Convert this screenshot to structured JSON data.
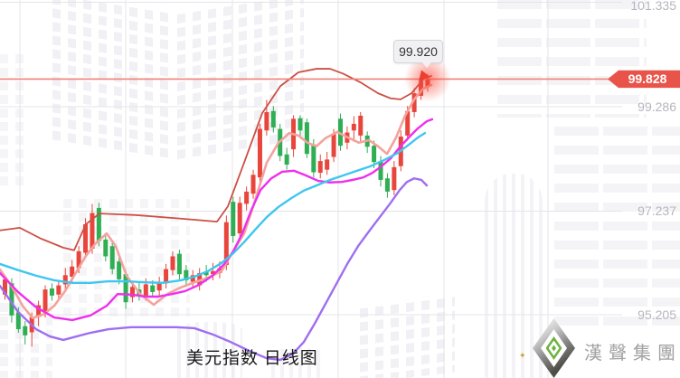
{
  "title": {
    "text": "美元指数 日线图"
  },
  "tooltip": {
    "value": "99.920"
  },
  "price_badge": {
    "value": "99.828",
    "color": "#e8544a"
  },
  "logo": {
    "text": "漢聲集團"
  },
  "y_axis": {
    "labels": [
      "101.335",
      "99.286",
      "97.237",
      "95.205"
    ]
  },
  "chart_data": {
    "type": "candlestick",
    "title": "美元指数 日线图",
    "instrument": "美元指数",
    "timeframe": "日线图",
    "current_price": 99.828,
    "marked_high": 99.92,
    "up_color": "#e8463c",
    "down_color": "#2fae54",
    "price_line_color": "#ef8276",
    "grid": {
      "vertical_x": [
        22,
        139,
        257,
        374,
        491,
        606
      ],
      "horizontal_prices": [
        101.335,
        99.286,
        97.237,
        95.205
      ],
      "color": "#e4e4ea"
    },
    "ylim": [
      94.2,
      101.4
    ],
    "candles_ohlc": [
      [
        95.6,
        95.98,
        95.5,
        95.9
      ],
      [
        95.82,
        95.92,
        95.05,
        95.19
      ],
      [
        95.25,
        95.35,
        94.85,
        94.92
      ],
      [
        94.98,
        95.08,
        94.62,
        94.8
      ],
      [
        94.86,
        95.25,
        94.58,
        95.16
      ],
      [
        95.16,
        95.48,
        94.98,
        95.39
      ],
      [
        95.25,
        95.78,
        95.15,
        95.7
      ],
      [
        95.72,
        95.82,
        95.48,
        95.58
      ],
      [
        95.6,
        95.88,
        95.5,
        95.78
      ],
      [
        95.8,
        96.12,
        95.7,
        95.98
      ],
      [
        95.95,
        96.28,
        95.85,
        96.15
      ],
      [
        96.12,
        96.55,
        96.02,
        96.45
      ],
      [
        96.42,
        97.1,
        96.32,
        96.98
      ],
      [
        96.5,
        97.38,
        96.4,
        97.2
      ],
      [
        97.3,
        97.4,
        96.55,
        96.65
      ],
      [
        96.68,
        96.8,
        96.25,
        96.35
      ],
      [
        96.55,
        96.65,
        96.0,
        96.1
      ],
      [
        96.25,
        96.35,
        95.8,
        95.9
      ],
      [
        96.0,
        96.08,
        95.32,
        95.45
      ],
      [
        95.55,
        95.85,
        95.45,
        95.75
      ],
      [
        95.7,
        95.85,
        95.48,
        95.6
      ],
      [
        95.58,
        95.92,
        95.48,
        95.8
      ],
      [
        95.78,
        95.88,
        95.55,
        95.65
      ],
      [
        95.68,
        95.95,
        95.58,
        95.85
      ],
      [
        95.82,
        96.2,
        95.72,
        96.1
      ],
      [
        96.08,
        96.45,
        95.98,
        96.35
      ],
      [
        96.4,
        96.48,
        95.9,
        96.0
      ],
      [
        96.08,
        96.18,
        95.78,
        95.88
      ],
      [
        95.85,
        96.08,
        95.75,
        95.98
      ],
      [
        95.78,
        96.12,
        95.68,
        96.02
      ],
      [
        96.05,
        96.18,
        95.85,
        95.98
      ],
      [
        96.0,
        96.22,
        95.88,
        96.06
      ],
      [
        96.02,
        96.25,
        95.92,
        96.12
      ],
      [
        96.18,
        97.15,
        96.08,
        97.02
      ],
      [
        97.42,
        97.52,
        96.62,
        96.75
      ],
      [
        96.8,
        97.52,
        96.7,
        97.4
      ],
      [
        97.38,
        97.72,
        97.25,
        97.62
      ],
      [
        97.58,
        98.05,
        97.48,
        97.95
      ],
      [
        97.9,
        98.95,
        97.8,
        98.85
      ],
      [
        98.82,
        99.42,
        98.72,
        99.18
      ],
      [
        99.2,
        99.3,
        98.78,
        98.88
      ],
      [
        98.85,
        98.95,
        98.22,
        98.32
      ],
      [
        98.35,
        98.48,
        98.05,
        98.15
      ],
      [
        98.45,
        99.12,
        98.3,
        99.05
      ],
      [
        99.06,
        99.12,
        98.72,
        98.82
      ],
      [
        98.98,
        99.05,
        98.28,
        98.36
      ],
      [
        98.55,
        98.65,
        97.9,
        98.0
      ],
      [
        97.99,
        98.35,
        97.88,
        98.22
      ],
      [
        98.05,
        98.4,
        97.95,
        98.25
      ],
      [
        98.3,
        98.85,
        98.2,
        98.75
      ],
      [
        99.05,
        99.15,
        98.42,
        98.52
      ],
      [
        98.58,
        98.9,
        98.45,
        98.78
      ],
      [
        98.82,
        99.1,
        98.6,
        98.95
      ],
      [
        98.72,
        99.18,
        98.6,
        99.11
      ],
      [
        98.72,
        98.8,
        98.38,
        98.5
      ],
      [
        98.52,
        98.62,
        98.08,
        98.2
      ],
      [
        98.22,
        98.32,
        97.72,
        97.85
      ],
      [
        97.88,
        97.98,
        97.5,
        97.62
      ],
      [
        97.65,
        98.22,
        97.55,
        98.1
      ],
      [
        98.12,
        98.82,
        98.02,
        98.7
      ],
      [
        98.72,
        99.3,
        98.62,
        99.2
      ],
      [
        99.18,
        99.65,
        99.08,
        99.55
      ],
      [
        99.5,
        99.86,
        99.42,
        99.78
      ],
      [
        99.68,
        99.92,
        99.58,
        99.828
      ]
    ],
    "overlays": [
      {
        "name": "upper-band",
        "color": "#cc5045",
        "width": 1.8,
        "points": [
          [
            0,
            96.86
          ],
          [
            22,
            96.91
          ],
          [
            45,
            96.7
          ],
          [
            70,
            96.52
          ],
          [
            82,
            96.47
          ],
          [
            95,
            96.98
          ],
          [
            110,
            97.19
          ],
          [
            150,
            97.16
          ],
          [
            200,
            97.09
          ],
          [
            240,
            97.03
          ],
          [
            252,
            97.33
          ],
          [
            270,
            98.19
          ],
          [
            290,
            99.16
          ],
          [
            310,
            99.69
          ],
          [
            330,
            99.96
          ],
          [
            350,
            100.03
          ],
          [
            365,
            100.03
          ],
          [
            380,
            99.93
          ],
          [
            400,
            99.75
          ],
          [
            418,
            99.55
          ],
          [
            432,
            99.45
          ],
          [
            443,
            99.43
          ],
          [
            455,
            99.55
          ],
          [
            468,
            99.82
          ],
          [
            477,
            99.89
          ]
        ]
      },
      {
        "name": "ma-fast",
        "color": "#f4a29c",
        "width": 2.6,
        "points": [
          [
            0,
            96.09
          ],
          [
            12,
            95.79
          ],
          [
            25,
            95.38
          ],
          [
            36,
            95.14
          ],
          [
            48,
            95.21
          ],
          [
            60,
            95.38
          ],
          [
            72,
            95.67
          ],
          [
            85,
            96.06
          ],
          [
            95,
            96.36
          ],
          [
            105,
            96.59
          ],
          [
            118,
            96.8
          ],
          [
            128,
            96.55
          ],
          [
            140,
            95.97
          ],
          [
            155,
            95.61
          ],
          [
            170,
            95.4
          ],
          [
            185,
            95.61
          ],
          [
            200,
            95.74
          ],
          [
            215,
            95.84
          ],
          [
            230,
            95.93
          ],
          [
            245,
            96.06
          ],
          [
            258,
            96.45
          ],
          [
            270,
            96.8
          ],
          [
            282,
            97.44
          ],
          [
            295,
            98.19
          ],
          [
            308,
            98.58
          ],
          [
            320,
            98.77
          ],
          [
            330,
            98.72
          ],
          [
            340,
            98.58
          ],
          [
            350,
            98.51
          ],
          [
            360,
            98.67
          ],
          [
            373,
            98.79
          ],
          [
            385,
            98.68
          ],
          [
            397,
            98.58
          ],
          [
            408,
            98.63
          ],
          [
            418,
            98.51
          ],
          [
            428,
            98.36
          ],
          [
            438,
            98.68
          ],
          [
            448,
            99.11
          ],
          [
            458,
            99.43
          ],
          [
            468,
            99.64
          ],
          [
            477,
            99.71
          ]
        ]
      },
      {
        "name": "ma-mid",
        "color": "#ee2fee",
        "width": 2.4,
        "points": [
          [
            0,
            96.02
          ],
          [
            20,
            95.65
          ],
          [
            40,
            95.35
          ],
          [
            60,
            95.15
          ],
          [
            80,
            95.1
          ],
          [
            100,
            95.19
          ],
          [
            118,
            95.38
          ],
          [
            130,
            95.61
          ],
          [
            145,
            95.6
          ],
          [
            160,
            95.56
          ],
          [
            175,
            95.56
          ],
          [
            190,
            95.61
          ],
          [
            205,
            95.67
          ],
          [
            220,
            95.79
          ],
          [
            235,
            95.97
          ],
          [
            248,
            96.2
          ],
          [
            258,
            96.45
          ],
          [
            268,
            96.8
          ],
          [
            278,
            97.26
          ],
          [
            288,
            97.65
          ],
          [
            300,
            97.88
          ],
          [
            312,
            98.01
          ],
          [
            325,
            98.03
          ],
          [
            338,
            97.94
          ],
          [
            352,
            97.83
          ],
          [
            365,
            97.8
          ],
          [
            378,
            97.81
          ],
          [
            390,
            97.85
          ],
          [
            402,
            97.9
          ],
          [
            412,
            97.99
          ],
          [
            422,
            98.12
          ],
          [
            432,
            98.27
          ],
          [
            442,
            98.49
          ],
          [
            452,
            98.68
          ],
          [
            462,
            98.86
          ],
          [
            472,
            99.0
          ],
          [
            478,
            99.04
          ]
        ]
      },
      {
        "name": "ma-slow",
        "color": "#3fc6f0",
        "width": 2.4,
        "points": [
          [
            0,
            96.2
          ],
          [
            20,
            96.08
          ],
          [
            40,
            95.97
          ],
          [
            60,
            95.88
          ],
          [
            80,
            95.83
          ],
          [
            100,
            95.83
          ],
          [
            120,
            95.86
          ],
          [
            140,
            95.86
          ],
          [
            160,
            95.84
          ],
          [
            180,
            95.83
          ],
          [
            200,
            95.88
          ],
          [
            215,
            95.95
          ],
          [
            230,
            96.06
          ],
          [
            245,
            96.22
          ],
          [
            258,
            96.41
          ],
          [
            270,
            96.63
          ],
          [
            282,
            96.87
          ],
          [
            295,
            97.12
          ],
          [
            308,
            97.32
          ],
          [
            322,
            97.49
          ],
          [
            336,
            97.64
          ],
          [
            350,
            97.74
          ],
          [
            365,
            97.85
          ],
          [
            380,
            97.94
          ],
          [
            395,
            98.03
          ],
          [
            410,
            98.12
          ],
          [
            425,
            98.24
          ],
          [
            440,
            98.38
          ],
          [
            452,
            98.54
          ],
          [
            462,
            98.68
          ],
          [
            470,
            98.77
          ]
        ]
      },
      {
        "name": "lower-band",
        "color": "#9f6ef0",
        "width": 2.4,
        "points": [
          [
            0,
            95.77
          ],
          [
            20,
            95.26
          ],
          [
            40,
            94.92
          ],
          [
            55,
            94.78
          ],
          [
            70,
            94.71
          ],
          [
            85,
            94.78
          ],
          [
            100,
            94.85
          ],
          [
            120,
            94.92
          ],
          [
            145,
            94.96
          ],
          [
            170,
            94.96
          ],
          [
            195,
            94.96
          ],
          [
            215,
            94.94
          ],
          [
            235,
            94.82
          ],
          [
            255,
            94.67
          ],
          [
            275,
            94.5
          ],
          [
            295,
            94.35
          ],
          [
            310,
            94.32
          ],
          [
            324,
            94.44
          ],
          [
            336,
            94.67
          ],
          [
            348,
            95.03
          ],
          [
            360,
            95.42
          ],
          [
            372,
            95.81
          ],
          [
            384,
            96.2
          ],
          [
            396,
            96.55
          ],
          [
            408,
            96.84
          ],
          [
            420,
            97.12
          ],
          [
            432,
            97.4
          ],
          [
            442,
            97.65
          ],
          [
            450,
            97.81
          ],
          [
            458,
            97.88
          ],
          [
            466,
            97.85
          ],
          [
            472,
            97.74
          ]
        ]
      }
    ]
  }
}
